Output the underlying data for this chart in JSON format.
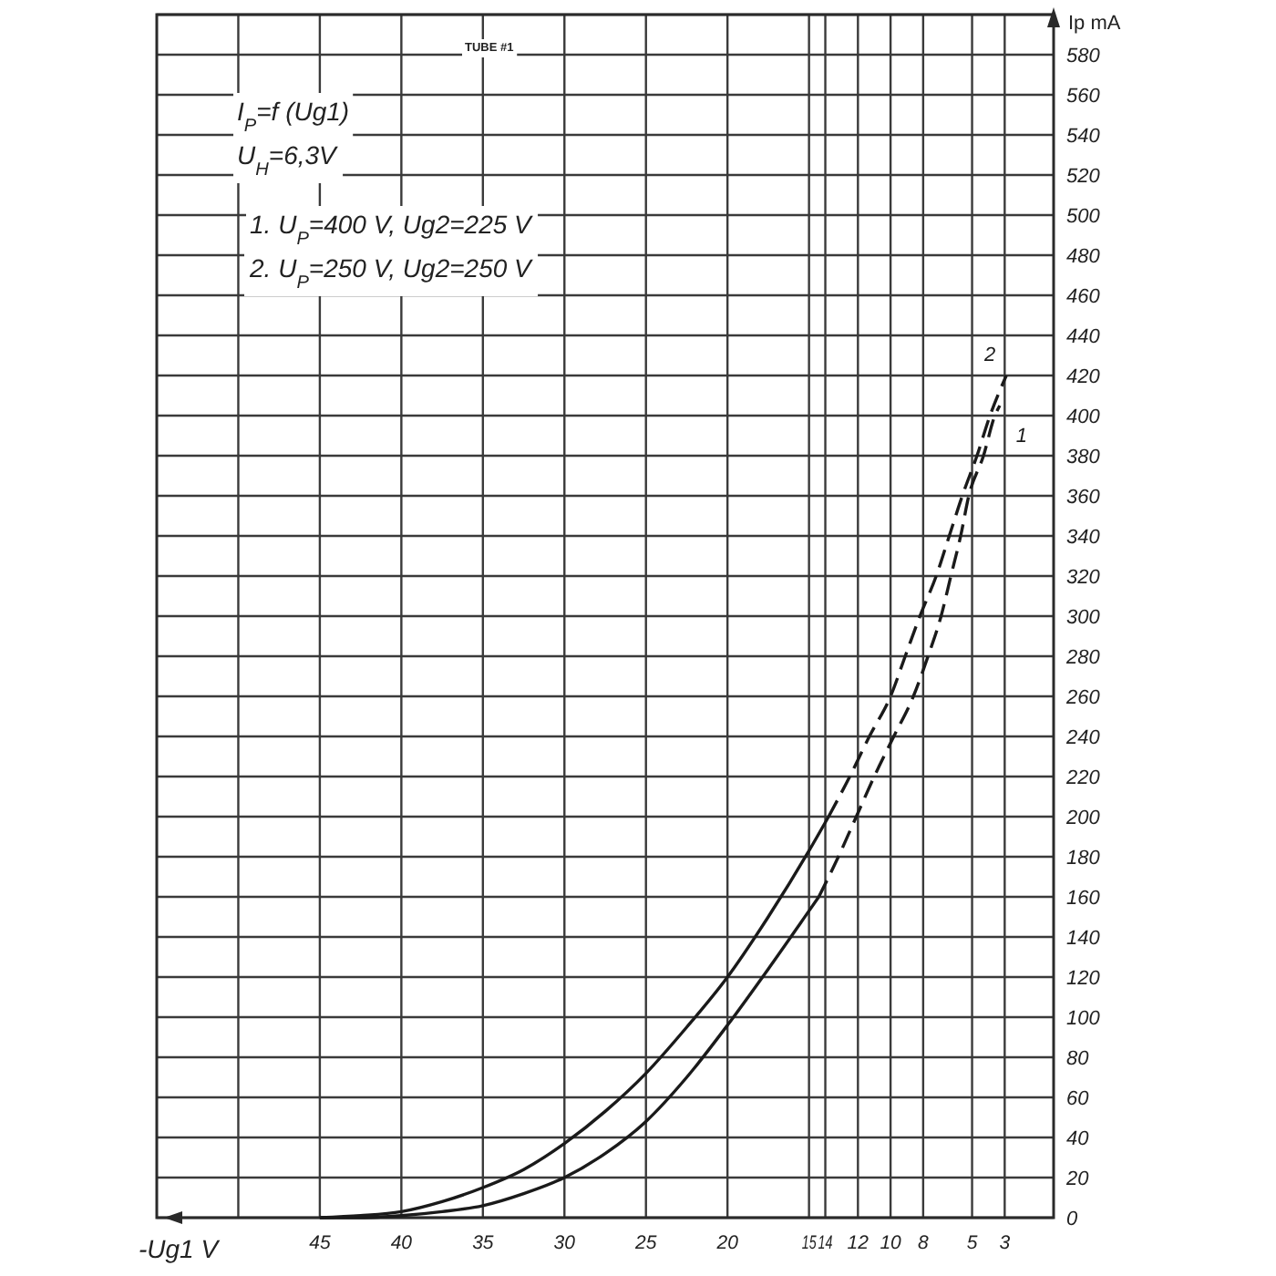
{
  "chart_data": {
    "type": "line",
    "title": "I$_{P}$=f (Ug1)",
    "subtitle": "TUBE #1",
    "xlabel": "-Ug1 V",
    "ylabel": "Ip mA",
    "annotations": [
      "U$_{H}$=6,3V",
      "1. U$_{P}$=400 V, Ug2=225 V",
      "2. U$_{P}$=250 V, Ug2=250 V"
    ],
    "xlim": [
      55,
      0
    ],
    "xticks": [
      {
        "value": 50,
        "label": null
      },
      45,
      40,
      35,
      30,
      25,
      20,
      15,
      14,
      12,
      10,
      8,
      5,
      3
    ],
    "ylim": [
      0,
      600
    ],
    "yticks": [
      0,
      20,
      40,
      60,
      80,
      100,
      120,
      140,
      160,
      180,
      200,
      220,
      240,
      260,
      280,
      300,
      320,
      340,
      360,
      380,
      400,
      420,
      440,
      460,
      480,
      500,
      520,
      540,
      560,
      580,
      {
        "value": 600,
        "label": null
      }
    ],
    "grid": true,
    "series": [
      {
        "color": "#1a1a1a",
        "line_style": "solid",
        "x": [
          45,
          42.5,
          40,
          37.5,
          35,
          32.5,
          30,
          27.5,
          25,
          22.5,
          20,
          17.5,
          15,
          14.4
        ],
        "values": [
          0,
          0,
          1,
          3,
          6,
          12,
          20,
          32,
          48,
          70,
          96,
          124,
          153,
          160
        ]
      },
      {
        "name": "1",
        "color": "#1a1a1a",
        "line_style": "dashed",
        "x": [
          14.4,
          13.2,
          12.1,
          11,
          9.8,
          8.6,
          7.7,
          6.9,
          6.3,
          5.7,
          5.2,
          4.3,
          3.6,
          3.3
        ],
        "values": [
          160,
          180,
          200,
          220,
          240,
          260,
          280,
          300,
          320,
          340,
          360,
          380,
          400,
          405
        ]
      },
      {
        "color": "#1a1a1a",
        "line_style": "solid",
        "x": [
          45,
          42.5,
          40,
          37.5,
          35,
          32.5,
          30,
          27.5,
          25,
          22.5,
          20,
          17.5,
          15,
          13.8
        ],
        "values": [
          0,
          1,
          3,
          8,
          15,
          24,
          37,
          53,
          72,
          95,
          120,
          150,
          183,
          200
        ]
      },
      {
        "name": "2",
        "color": "#1a1a1a",
        "line_style": "dashed",
        "x": [
          13.8,
          12.5,
          11.3,
          10,
          9.1,
          8.2,
          7.2,
          6.4,
          5.6,
          4.7,
          3.9,
          2.9
        ],
        "values": [
          200,
          220,
          240,
          260,
          280,
          300,
          320,
          340,
          360,
          380,
          400,
          420
        ]
      }
    ]
  }
}
